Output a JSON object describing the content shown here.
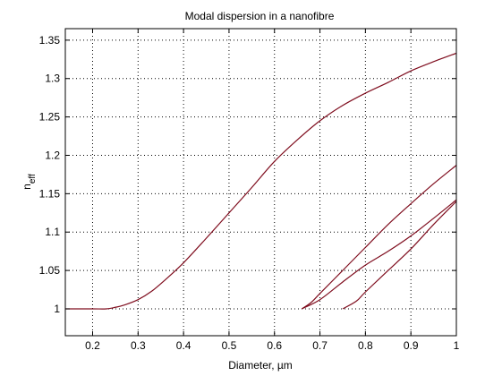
{
  "chart_data": {
    "type": "line",
    "title": "Modal dispersion in a nanofibre",
    "xlabel": "Diameter, µm",
    "ylabel_main": "n",
    "ylabel_sub": "eff",
    "xlim": [
      0.14,
      1.0
    ],
    "ylim": [
      0.965,
      1.365
    ],
    "xticks": [
      0.2,
      0.3,
      0.4,
      0.5,
      0.6,
      0.7,
      0.8,
      0.9,
      1.0
    ],
    "xtick_labels": [
      "0.2",
      "0.3",
      "0.4",
      "0.5",
      "0.6",
      "0.7",
      "0.8",
      "0.9",
      "1"
    ],
    "yticks": [
      1.0,
      1.05,
      1.1,
      1.15,
      1.2,
      1.25,
      1.3,
      1.35
    ],
    "ytick_labels": [
      "1",
      "1.05",
      "1.1",
      "1.15",
      "1.2",
      "1.25",
      "1.3",
      "1.35"
    ],
    "grid": true,
    "line_color": "#7f0d1e",
    "series": [
      {
        "x": [
          0.14,
          0.2,
          0.23,
          0.25,
          0.27,
          0.3,
          0.33,
          0.36,
          0.4,
          0.45,
          0.5,
          0.55,
          0.6,
          0.65,
          0.7,
          0.75,
          0.8,
          0.85,
          0.9,
          0.95,
          1.0
        ],
        "y": [
          1.0,
          1.0,
          1.0,
          1.002,
          1.005,
          1.012,
          1.023,
          1.038,
          1.06,
          1.092,
          1.125,
          1.158,
          1.192,
          1.22,
          1.245,
          1.265,
          1.281,
          1.295,
          1.31,
          1.322,
          1.333
        ]
      },
      {
        "x": [
          0.66,
          0.68,
          0.7,
          0.75,
          0.8,
          0.85,
          0.9,
          0.95,
          1.0
        ],
        "y": [
          1.0,
          1.008,
          1.02,
          1.05,
          1.08,
          1.11,
          1.137,
          1.163,
          1.187
        ]
      },
      {
        "x": [
          0.66,
          0.7,
          0.75,
          0.8,
          0.85,
          0.9,
          0.95,
          1.0
        ],
        "y": [
          1.0,
          1.012,
          1.035,
          1.057,
          1.075,
          1.095,
          1.118,
          1.142
        ]
      },
      {
        "x": [
          0.75,
          0.78,
          0.8,
          0.85,
          0.9,
          0.95,
          1.0
        ],
        "y": [
          1.0,
          1.01,
          1.022,
          1.05,
          1.078,
          1.11,
          1.14
        ]
      }
    ]
  }
}
